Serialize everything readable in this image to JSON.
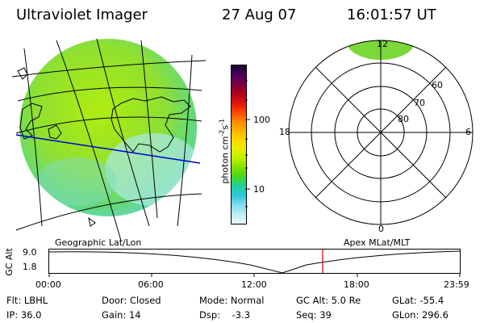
{
  "header": {
    "instrument": "Ultraviolet Imager",
    "date": "27 Aug 07",
    "time": "16:01:57 UT"
  },
  "geo_panel": {
    "label": "Geographic Lat/Lon"
  },
  "colorbar": {
    "unit_label": "photon cm",
    "unit_exp1": "-2",
    "unit_s": "s",
    "unit_exp2": "-1",
    "ticks": [
      "100",
      "10"
    ],
    "colors": [
      "#1a0033",
      "#4a0060",
      "#7a0040",
      "#b0001a",
      "#e01010",
      "#ff4400",
      "#ff8800",
      "#ffb000",
      "#ffd800",
      "#e8f000",
      "#b8f000",
      "#80e000",
      "#40d820",
      "#20d0a0",
      "#30c8e0",
      "#80dcec",
      "#c0eef4",
      "#e8f8fa"
    ]
  },
  "polar_panel": {
    "label": "Apex MLat/MLT",
    "mlt_labels": {
      "top": "12",
      "right": "6",
      "bottom": "0",
      "left": "18"
    },
    "lat_labels": [
      "60",
      "70",
      "80"
    ]
  },
  "timeline": {
    "axis_label": "GC Alt",
    "y_ticks": [
      "9.0",
      "1.8"
    ],
    "x_ticks": [
      "00:00",
      "06:00",
      "12:00",
      "18:00",
      "23:59"
    ],
    "current_time_marker": "16:01:57"
  },
  "info": {
    "col1": [
      "Flt: LBHL",
      "IP: 36.0"
    ],
    "col2": [
      "Door: Closed",
      "Gain: 14"
    ],
    "col3": [
      "Mode: Normal",
      "Dsp:    -3.3"
    ],
    "col4": [
      "GC Alt: 5.0 Re",
      "Seq: 39"
    ],
    "col5": [
      "GLat: -55.4",
      "GLon: 296.6"
    ]
  }
}
